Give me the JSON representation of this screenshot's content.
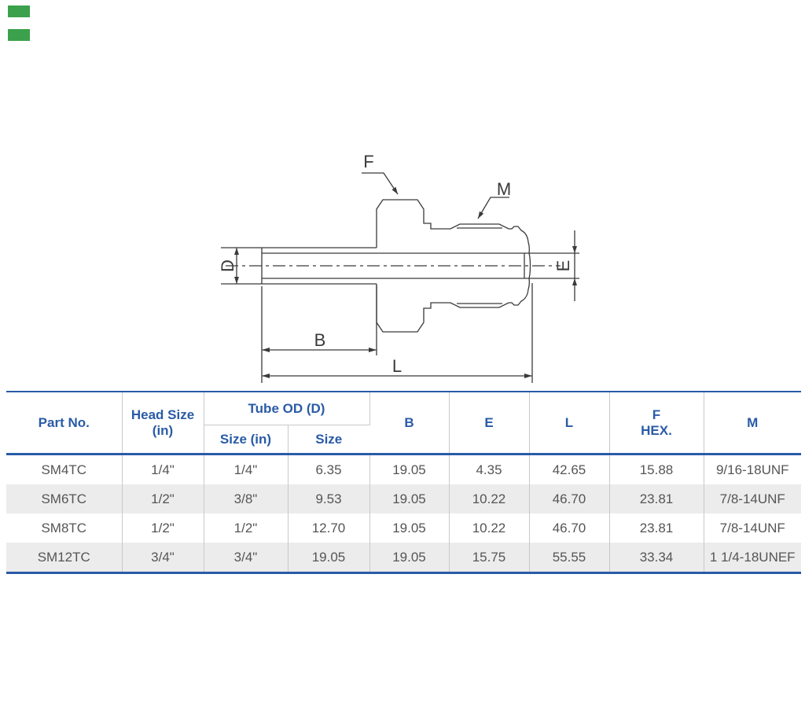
{
  "decoration": {
    "accent_green": "#3ba14c"
  },
  "diagram": {
    "labels": {
      "f": "F",
      "m": "M",
      "d": "D",
      "e": "E",
      "b": "B",
      "l": "L"
    }
  },
  "table": {
    "headers": {
      "part_no": "Part No.",
      "head_size_l1": "Head Size",
      "head_size_l2": "(in)",
      "tube_od": "Tube OD (D)",
      "tube_size_in": "Size (in)",
      "tube_size": "Size",
      "b": "B",
      "e": "E",
      "l": "L",
      "f_hex_l1": "F",
      "f_hex_l2": "HEX.",
      "m": "M"
    },
    "rows": [
      {
        "part_no": "SM4TC",
        "head_size": "1/4\"",
        "tube_size_in": "1/4\"",
        "tube_size": "6.35",
        "b": "19.05",
        "e": "4.35",
        "l": "42.65",
        "f_hex": "15.88",
        "m": "9/16-18UNF"
      },
      {
        "part_no": "SM6TC",
        "head_size": "1/2\"",
        "tube_size_in": "3/8\"",
        "tube_size": "9.53",
        "b": "19.05",
        "e": "10.22",
        "l": "46.70",
        "f_hex": "23.81",
        "m": "7/8-14UNF"
      },
      {
        "part_no": "SM8TC",
        "head_size": "1/2\"",
        "tube_size_in": "1/2\"",
        "tube_size": "12.70",
        "b": "19.05",
        "e": "10.22",
        "l": "46.70",
        "f_hex": "23.81",
        "m": "7/8-14UNF"
      },
      {
        "part_no": "SM12TC",
        "head_size": "3/4\"",
        "tube_size_in": "3/4\"",
        "tube_size": "19.05",
        "b": "19.05",
        "e": "15.75",
        "l": "55.55",
        "f_hex": "33.34",
        "m": "1 1/4-18UNEF"
      }
    ]
  },
  "colors": {
    "header_blue": "#2a5ba7",
    "rule_blue": "#2a5ba7",
    "grid_gray": "#c9c9c9",
    "row_alt_gray": "#ececec",
    "body_text": "#555557",
    "line_color": "#3a3a3a"
  }
}
